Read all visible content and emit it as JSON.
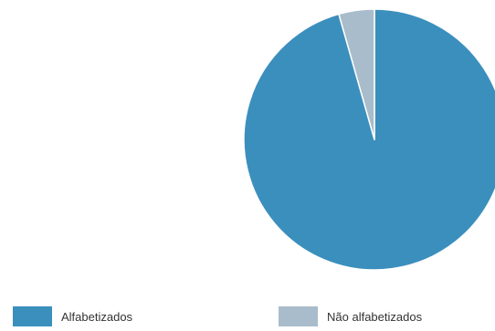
{
  "chart_data": {
    "type": "pie",
    "title": "",
    "slices": [
      {
        "label": "Alfabetizados",
        "value": 95.6,
        "color": "#3b8fbd"
      },
      {
        "label": "Não alfabetizados",
        "value": 4.4,
        "color": "#a9bccb"
      }
    ],
    "start_angle_deg": 0,
    "direction": "clockwise",
    "legend": "bottom"
  }
}
